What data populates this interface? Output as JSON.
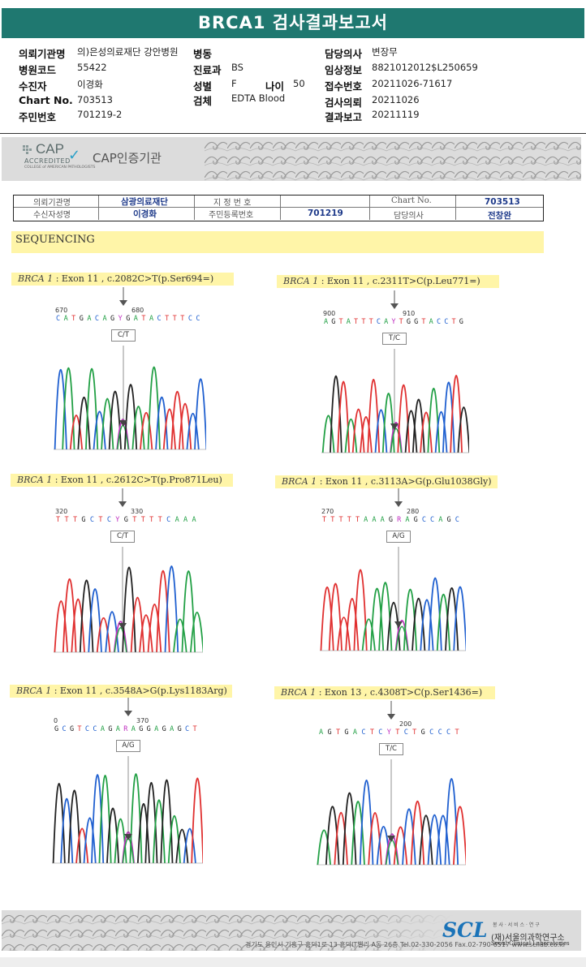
{
  "report": {
    "title": "BRCA1 검사결과보고서",
    "fields": {
      "institution_label": "의뢰기관명",
      "institution_value": "의)은성의료재단 강안병원",
      "ward_label": "병동",
      "doctor_label": "담당의사",
      "doctor_value": "변장무",
      "hospital_code_label": "병원코드",
      "hospital_code_value": "55422",
      "dept_label": "진료과",
      "dept_value": "BS",
      "clinical_info_label": "임상정보",
      "clinical_info_value": "8821012012$L250659",
      "recipient_label": "수진자",
      "recipient_value": "이경화",
      "sex_label": "성별",
      "sex_value": "F",
      "age_label": "나이",
      "age_value": "50",
      "receipt_no_label": "접수번호",
      "receipt_no_value": "20211026-71617",
      "chart_label": "Chart No.",
      "chart_value": "703513",
      "specimen_label": "검체",
      "specimen_value": "EDTA Blood",
      "request_date_label": "검사의뢰",
      "request_date_value": "20211026",
      "id_label": "주민번호",
      "id_value": "701219-2",
      "report_date_label": "결과보고",
      "report_date_value": "20211119"
    }
  },
  "cap": {
    "logo_text": "CAP",
    "logo_sub": "ACCREDITED",
    "logo_small": "COLLEGE of AMERICAN PATHOLOGISTS",
    "title": "CAP인증기관"
  },
  "record": {
    "inst_label": "의뢰기관명",
    "inst_value": "삼광의료재단",
    "ref_label": "지 정 번 호",
    "chart_label": "Chart No.",
    "chart_value": "703513",
    "name_label": "수신자성명",
    "name_value": "이경화",
    "rrn_label": "주민등록번호",
    "rrn_value": "701219",
    "doctor_label": "담당의사",
    "doctor_value": "전창완"
  },
  "section": {
    "title": "SEQUENCING"
  },
  "variants": [
    {
      "gene": "BRCA 1",
      "desc": " : Exon 11 , c.2082C>T(p.Ser694=)",
      "pos_left": "670",
      "pos_mid": "680",
      "pos_right": "",
      "seq": "CATGACAGYGATACTTTCC",
      "call": "C/T"
    },
    {
      "gene": "BRCA 1",
      "desc": " : Exon 11 , c.2311T>C(p.Leu771=)",
      "pos_left": "900",
      "pos_mid": "910",
      "pos_right": "",
      "seq": "AGTATTTCAYTGGTACCTG",
      "call": "T/C"
    },
    {
      "gene": "BRCA 1",
      "desc": " : Exon 11 , c.2612C>T(p.Pro871Leu)",
      "pos_left": "320",
      "pos_mid": "330",
      "pos_right": "",
      "seq": "TTTGCTCYGTTTTCAAA",
      "call": "C/T"
    },
    {
      "gene": "BRCA 1",
      "desc": " : Exon 11 , c.3113A>G(p.Glu1038Gly)",
      "pos_left": "270",
      "pos_mid": "280",
      "pos_right": "",
      "seq": "TTTTTAAAGRAGCCAGC",
      "call": "A/G"
    },
    {
      "gene": "BRCA 1",
      "desc": " : Exon 11 , c.3548A>G(p.Lys1183Arg)",
      "pos_left": "0",
      "pos_mid": "370",
      "pos_right": "",
      "seq": "GCGTCCAGARAGGAGAGCT",
      "call": "A/G"
    },
    {
      "gene": "BRCA 1",
      "desc": " : Exon 13 , c.4308T>C(p.Ser1436=)",
      "pos_left": "",
      "pos_mid": "200",
      "pos_right": "",
      "seq": "AGTGACTCYTCTGCCCT",
      "call": "T/C"
    }
  ],
  "footer": {
    "address": "경기도 용인시 기흥구 흥덕1로 13 흥덕IT밸리 A동 26층   Tel.02-330-2056   Fax.02-790-6517   www.scllab.co.kr",
    "logo": "SCL",
    "tagline": "봉 사 · 서 비 스 · 연 구",
    "name": "(재)서울의과학연구소",
    "name_en": "Seoul Clinical Laboratories"
  },
  "colors": {
    "title_bg": "#1f7870",
    "highlight": "#fff5a8",
    "base_A": "#22a045",
    "base_C": "#2060d0",
    "base_G": "#222222",
    "base_T": "#e03030"
  }
}
